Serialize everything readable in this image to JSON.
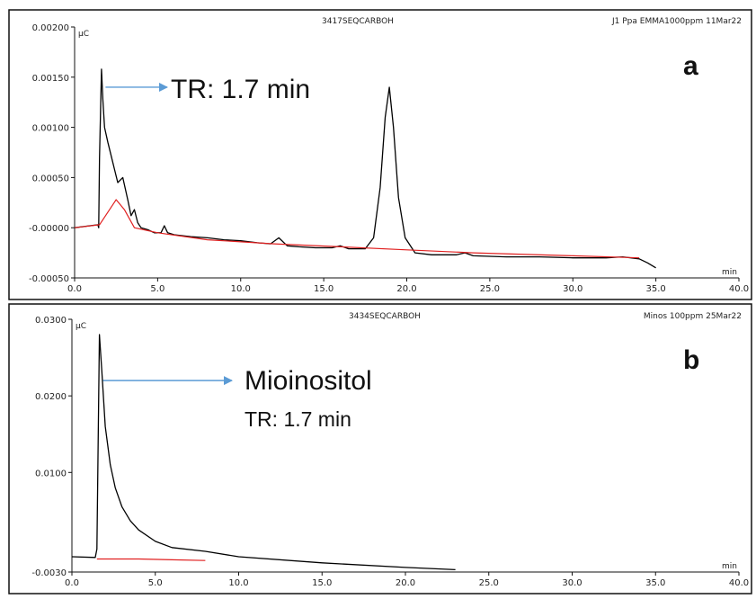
{
  "chart_data": [
    {
      "type": "line",
      "panel_letter": "a",
      "header_center": "3417SEQCARBOH",
      "header_right": "J1 Ppa EMMA1000ppm 11Mar22",
      "y_unit": "µC",
      "x_unit": "min",
      "xlim": [
        0.0,
        40.0
      ],
      "ylim": [
        -0.0005,
        0.002
      ],
      "x_ticks": [
        "0.0",
        "5.0",
        "10.0",
        "15.0",
        "20.0",
        "25.0",
        "30.0",
        "35.0",
        "40.0"
      ],
      "y_ticks": [
        {
          "value": 0.002,
          "label": "0.00200"
        },
        {
          "value": 0.0015,
          "label": "0.00150"
        },
        {
          "value": 0.001,
          "label": "0.00100"
        },
        {
          "value": 0.0005,
          "label": "0.00050"
        },
        {
          "value": 0.0,
          "label": "-0.00000"
        },
        {
          "value": -0.0005,
          "label": "-0.00050"
        }
      ],
      "annotations": [
        {
          "text": "TR: 1.7 min",
          "x": 1.7,
          "y": 0.0014
        }
      ],
      "series": [
        {
          "role": "signal",
          "color": "#000000",
          "x": [
            0.0,
            1.4,
            1.45,
            1.5,
            1.62,
            1.7,
            1.8,
            2.0,
            2.3,
            2.6,
            2.9,
            3.2,
            3.4,
            3.6,
            3.8,
            4.0,
            4.4,
            4.8,
            5.2,
            5.4,
            5.6,
            6.0,
            7.0,
            8.0,
            9.0,
            10.0,
            11.0,
            11.8,
            12.3,
            12.8,
            13.5,
            14.5,
            15.5,
            16.0,
            16.5,
            17.5,
            18.0,
            18.4,
            18.7,
            18.95,
            19.2,
            19.5,
            19.9,
            20.5,
            21.5,
            23.0,
            23.5,
            24.0,
            26.0,
            28.0,
            30.0,
            32.0,
            33.0,
            34.0,
            34.5,
            35.0
          ],
          "y": [
            0.0,
            3e-05,
            0.0,
            0.0007,
            0.00158,
            0.00128,
            0.001,
            0.00085,
            0.00065,
            0.00045,
            0.0005,
            0.00028,
            0.00012,
            0.00018,
            5e-05,
            0.0,
            -2e-05,
            -5e-05,
            -5e-05,
            2e-05,
            -5e-05,
            -7e-05,
            -9e-05,
            -0.0001,
            -0.00012,
            -0.00013,
            -0.00015,
            -0.00016,
            -0.0001,
            -0.00018,
            -0.00019,
            -0.0002,
            -0.0002,
            -0.00018,
            -0.00021,
            -0.00021,
            -0.0001,
            0.0004,
            0.0011,
            0.0014,
            0.001,
            0.0003,
            -0.0001,
            -0.00025,
            -0.00027,
            -0.00027,
            -0.00025,
            -0.00028,
            -0.00029,
            -0.00029,
            -0.0003,
            -0.0003,
            -0.00029,
            -0.00031,
            -0.00035,
            -0.0004
          ]
        },
        {
          "role": "baseline",
          "color": "#e02020",
          "x": [
            0.0,
            1.5,
            2.5,
            3.0,
            3.6,
            5.0,
            8.0,
            12.0,
            16.0,
            20.0,
            24.0,
            30.0,
            34.0
          ],
          "y": [
            0.0,
            3e-05,
            0.00028,
            0.00018,
            0.0,
            -5e-05,
            -0.00012,
            -0.00016,
            -0.00019,
            -0.00022,
            -0.00025,
            -0.00028,
            -0.0003
          ]
        }
      ]
    },
    {
      "type": "line",
      "panel_letter": "b",
      "header_center": "3434SEQCARBOH",
      "header_right": "Minos 100ppm 25Mar22",
      "y_unit": "µC",
      "x_unit": "min",
      "xlim": [
        0.0,
        40.0
      ],
      "ylim": [
        -0.003,
        0.03
      ],
      "x_ticks": [
        "0.0",
        "5.0",
        "10.0",
        "15.0",
        "20.0",
        "25.0",
        "30.0",
        "35.0",
        "40.0"
      ],
      "y_ticks": [
        {
          "value": 0.03,
          "label": "0.0300"
        },
        {
          "value": 0.02,
          "label": "0.0200"
        },
        {
          "value": 0.01,
          "label": "0.0100"
        },
        {
          "value": -0.003,
          "label": "-0.0030"
        }
      ],
      "annotations": [
        {
          "text": "Mioinositol",
          "x": 1.7,
          "y": 0.022
        },
        {
          "text": "TR: 1.7 min"
        }
      ],
      "series": [
        {
          "role": "signal",
          "color": "#000000",
          "x": [
            0.0,
            1.4,
            1.5,
            1.65,
            1.8,
            2.0,
            2.3,
            2.6,
            3.0,
            3.5,
            4.0,
            5.0,
            6.0,
            8.0,
            10.0,
            15.0,
            20.0,
            23.0
          ],
          "y": [
            -0.001,
            -0.0011,
            0.0,
            0.028,
            0.023,
            0.016,
            0.011,
            0.008,
            0.0055,
            0.0037,
            0.0025,
            0.001,
            0.0002,
            -0.0003,
            -0.001,
            -0.0018,
            -0.0024,
            -0.0027
          ]
        },
        {
          "role": "baseline",
          "color": "#e02020",
          "x": [
            1.5,
            4.0,
            6.0,
            8.0
          ],
          "y": [
            -0.0013,
            -0.0013,
            -0.0014,
            -0.0015
          ]
        }
      ]
    }
  ]
}
